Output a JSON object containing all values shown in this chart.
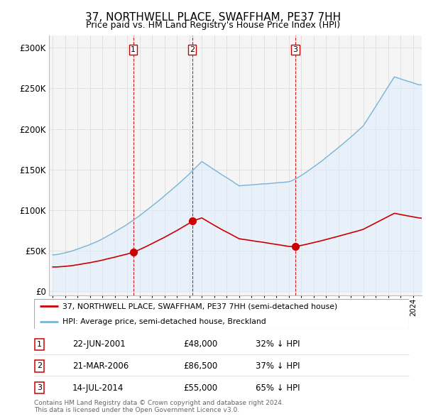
{
  "title": "37, NORTHWELL PLACE, SWAFFHAM, PE37 7HH",
  "subtitle": "Price paid vs. HM Land Registry's House Price Index (HPI)",
  "ylabel_ticks": [
    "£0",
    "£50K",
    "£100K",
    "£150K",
    "£200K",
    "£250K",
    "£300K"
  ],
  "ytick_values": [
    0,
    50000,
    100000,
    150000,
    200000,
    250000,
    300000
  ],
  "ylim": [
    -5000,
    315000
  ],
  "xlim_start": 1994.7,
  "xlim_end": 2024.7,
  "sale_dates": [
    2001.472,
    2006.22,
    2014.536
  ],
  "sale_prices": [
    48000,
    86500,
    55000
  ],
  "sale_labels": [
    "1",
    "2",
    "3"
  ],
  "legend_property": "37, NORTHWELL PLACE, SWAFFHAM, PE37 7HH (semi-detached house)",
  "legend_hpi": "HPI: Average price, semi-detached house, Breckland",
  "table_rows": [
    [
      "1",
      "22-JUN-2001",
      "£48,000",
      "32% ↓ HPI"
    ],
    [
      "2",
      "21-MAR-2006",
      "£86,500",
      "37% ↓ HPI"
    ],
    [
      "3",
      "14-JUL-2014",
      "£55,000",
      "65% ↓ HPI"
    ]
  ],
  "footer": "Contains HM Land Registry data © Crown copyright and database right 2024.\nThis data is licensed under the Open Government Licence v3.0.",
  "property_line_color": "#cc0000",
  "hpi_line_color": "#7ab3d4",
  "hpi_fill_color": "#ddeeff",
  "sale_marker_color": "#cc0000",
  "dashed_line_color": "#cc0000",
  "plot_bg_color": "#f5f5f5",
  "grid_color": "#dddddd",
  "title_fontsize": 11,
  "subtitle_fontsize": 9
}
